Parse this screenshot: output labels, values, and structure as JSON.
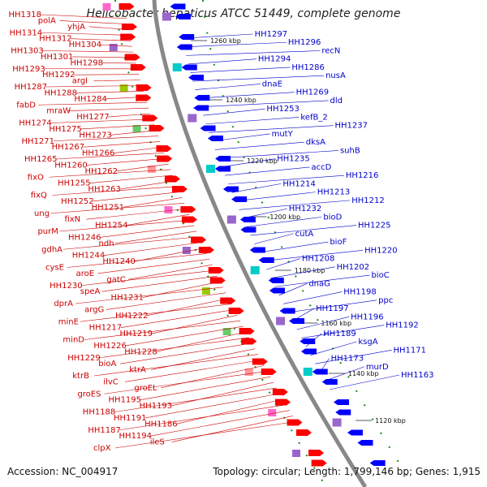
{
  "title": "Helicobacter hepaticus ATCC 51449, complete genome",
  "footer": {
    "accession": "Accession: NC_004917",
    "topology": "Topology: circular; Length: 1,799,146 bp; Genes: 1,915"
  },
  "colors": {
    "forward_strand": "#ff0000",
    "reverse_strand": "#0000ff",
    "backbone": "#888888",
    "tick_dots": "#1a8a1a",
    "label_forward": "#cc0000",
    "label_reverse": "#0000cc"
  },
  "kbp_ticks": [
    "1260 kbp",
    "1240 kbp",
    "1220 kbp",
    "1200 kbp",
    "1180 kbp",
    "1160 kbp",
    "1140 kbp",
    "1120 kbp"
  ],
  "left_labels": [
    "HH1318",
    "polA",
    "yhjA",
    "HH1314",
    "HH1312",
    "HH1304",
    "HH1303",
    "HH1301",
    "HH1298",
    "HH1293",
    "HH1292",
    "argI",
    "HH1287",
    "HH1288",
    "HH1284",
    "fabD",
    "mraW",
    "HH1277",
    "HH1274",
    "HH1275",
    "HH1273",
    "HH1271",
    "HH1267",
    "HH1266",
    "HH1265",
    "HH1260",
    "HH1262",
    "fixO",
    "HH1255",
    "HH1263",
    "fixQ",
    "HH1252",
    "HH1251",
    "ung",
    "fixN",
    "HH1254",
    "purM",
    "HH1246",
    "ndh",
    "gdhA",
    "HH1244",
    "HH1240",
    "cysE",
    "aroE",
    "gatC",
    "HH1230",
    "speA",
    "HH1231",
    "dprA",
    "argG",
    "HH1222",
    "minE",
    "HH1217",
    "HH1219",
    "minD",
    "HH1226",
    "HH1228",
    "HH1229",
    "bioA",
    "ktrA",
    "ktrB",
    "ilvC",
    "groEL",
    "groES",
    "HH1195",
    "HH1193",
    "HH1188",
    "HH1191",
    "HH1186",
    "HH1187",
    "HH1194",
    "ileS",
    "clpX"
  ],
  "right_labels": [
    "HH1297",
    "HH1296",
    "recN",
    "HH1294",
    "HH1286",
    "nusA",
    "dnaE",
    "HH1269",
    "dld",
    "HH1253",
    "kefB_2",
    "HH1237",
    "mutY",
    "dksA",
    "suhB",
    "HH1235",
    "accD",
    "HH1216",
    "HH1214",
    "HH1213",
    "HH1212",
    "HH1232",
    "bioD",
    "HH1225",
    "cutA",
    "bioF",
    "HH1220",
    "HH1208",
    "HH1202",
    "bioC",
    "dnaG",
    "HH1198",
    "ppc",
    "HH1197",
    "HH1196",
    "HH1192",
    "HH1189",
    "ksgA",
    "HH1171",
    "HH1173",
    "murD",
    "HH1163"
  ]
}
